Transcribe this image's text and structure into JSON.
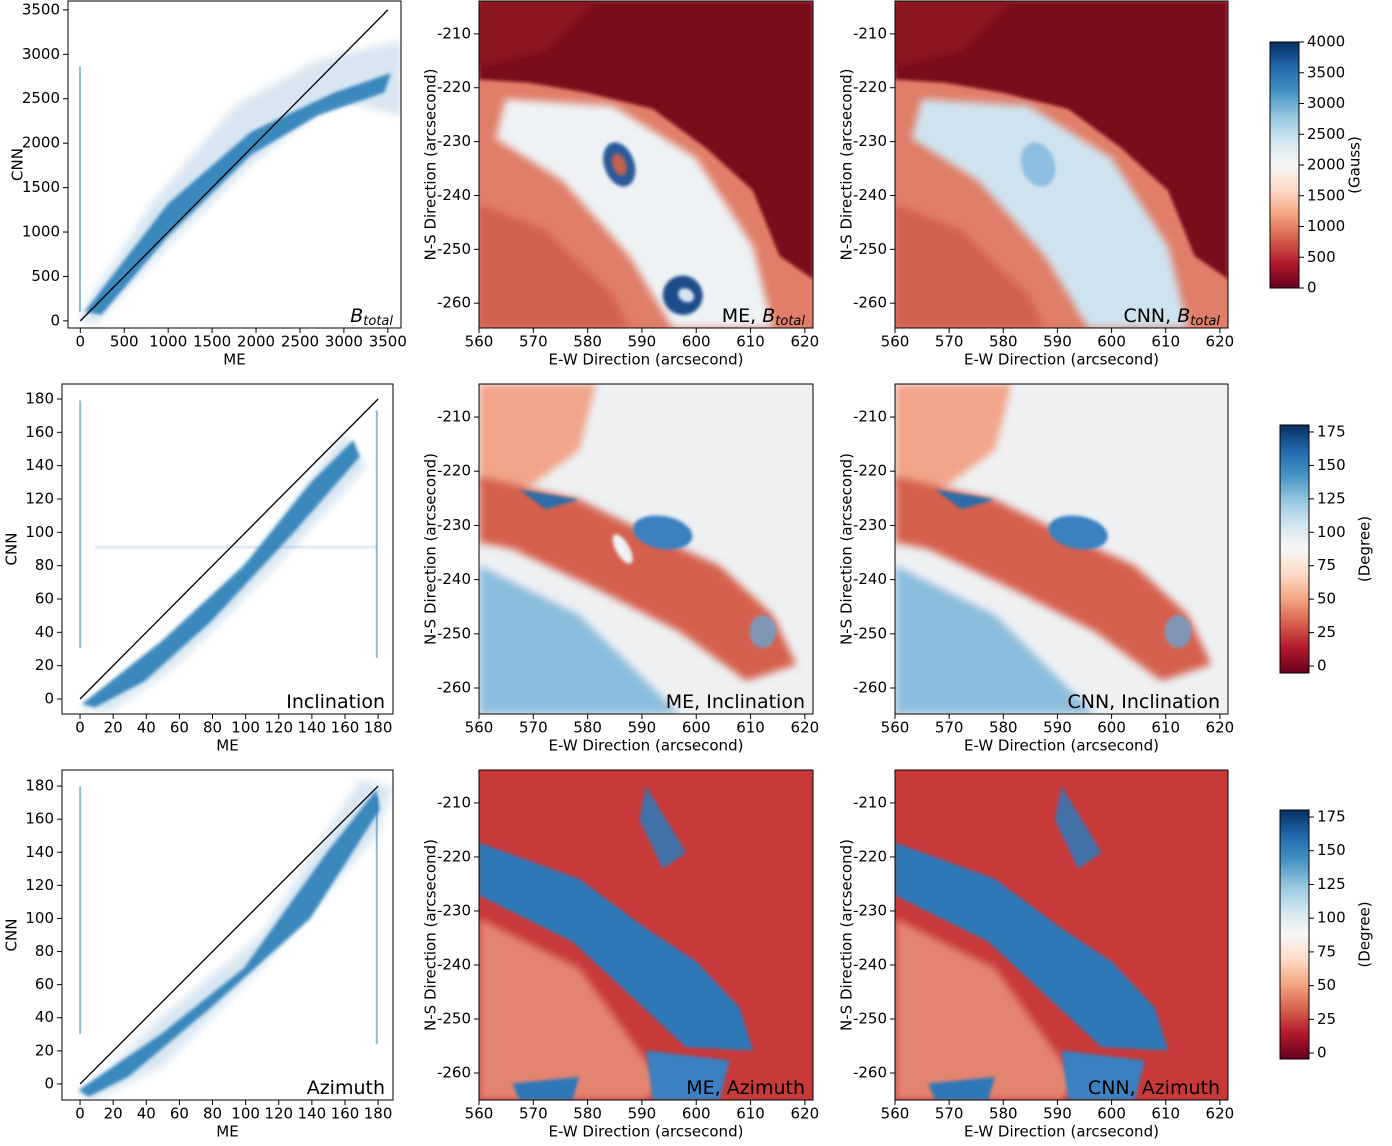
{
  "chart_data": [
    {
      "type": "scatter",
      "xlabel": "ME",
      "ylabel": "CNN",
      "xlim": [
        -140,
        3650
      ],
      "ylim": [
        -80,
        3600
      ],
      "xticks": [
        0,
        500,
        1000,
        1500,
        2000,
        2500,
        3000,
        3500
      ],
      "yticks": [
        0,
        500,
        1000,
        1500,
        2000,
        2500,
        3000,
        3500
      ],
      "annotation": {
        "symbol": "B",
        "subscript": "total"
      },
      "point_color": "#1f77b4",
      "series": [
        {
          "x": [
            0,
            3500
          ],
          "values": [
            0,
            3500
          ],
          "color": "#000000"
        }
      ]
    },
    {
      "type": "heatmap",
      "xlabel": "E-W Direction (arcsecond)",
      "ylabel": "N-S Direction (arcsecond)",
      "xlim": [
        560,
        621.5
      ],
      "ylim": [
        -264.6,
        -203.9
      ],
      "xticks": [
        560,
        570,
        580,
        590,
        600,
        610,
        620
      ],
      "yticks": [
        -260,
        -250,
        -240,
        -230,
        -220,
        -210
      ],
      "annotation": {
        "text": "ME, ",
        "symbol": "B",
        "subscript": "total"
      }
    },
    {
      "type": "heatmap",
      "xlabel": "E-W Direction (arcsecond)",
      "ylabel": "N-S Direction (arcsecond)",
      "xlim": [
        560,
        621.5
      ],
      "ylim": [
        -264.6,
        -203.9
      ],
      "xticks": [
        560,
        570,
        580,
        590,
        600,
        610,
        620
      ],
      "yticks": [
        -260,
        -250,
        -240,
        -230,
        -220,
        -210
      ],
      "annotation": {
        "text": "CNN, ",
        "symbol": "B",
        "subscript": "total"
      }
    },
    {
      "type": "colorbar",
      "label": "(Gauss)",
      "ylim": [
        0,
        4000
      ],
      "yticks": [
        0,
        500,
        1000,
        1500,
        2000,
        2500,
        3000,
        3500,
        4000
      ],
      "colormap": [
        "#67001f",
        "#b2182b",
        "#d6604d",
        "#f4a582",
        "#fddbc7",
        "#f7f7f7",
        "#d1e5f0",
        "#92c5de",
        "#4393c3",
        "#2166ac",
        "#053061"
      ]
    },
    {
      "type": "scatter",
      "xlabel": "ME",
      "ylabel": "CNN",
      "xlim": [
        -10.9,
        189
      ],
      "ylim": [
        -9,
        189
      ],
      "xticks": [
        0,
        20,
        40,
        60,
        80,
        100,
        120,
        140,
        160,
        180
      ],
      "yticks": [
        0,
        20,
        40,
        60,
        80,
        100,
        120,
        140,
        160,
        180
      ],
      "annotation": {
        "text": "Inclination"
      },
      "point_color": "#1f77b4",
      "series": [
        {
          "x": [
            0,
            180
          ],
          "values": [
            0,
            180
          ],
          "color": "#000000"
        }
      ]
    },
    {
      "type": "heatmap",
      "xlabel": "E-W Direction (arcsecond)",
      "ylabel": "N-S Direction (arcsecond)",
      "xlim": [
        560,
        621.5
      ],
      "ylim": [
        -264.8,
        -203.9
      ],
      "xticks": [
        560,
        570,
        580,
        590,
        600,
        610,
        620
      ],
      "yticks": [
        -260,
        -250,
        -240,
        -230,
        -220,
        -210
      ],
      "annotation": {
        "text": "ME, Inclination"
      }
    },
    {
      "type": "heatmap",
      "xlabel": "E-W Direction (arcsecond)",
      "ylabel": "N-S Direction (arcsecond)",
      "xlim": [
        560,
        621.5
      ],
      "ylim": [
        -264.8,
        -203.9
      ],
      "xticks": [
        560,
        570,
        580,
        590,
        600,
        610,
        620
      ],
      "yticks": [
        -260,
        -250,
        -240,
        -230,
        -220,
        -210
      ],
      "annotation": {
        "text": "CNN, Inclination"
      }
    },
    {
      "type": "colorbar",
      "label": "(Degree)",
      "ylim": [
        -5.2,
        180.2
      ],
      "yticks": [
        0,
        25,
        50,
        75,
        100,
        125,
        150,
        175
      ],
      "colormap": [
        "#67001f",
        "#b2182b",
        "#d6604d",
        "#f4a582",
        "#fddbc7",
        "#f7f7f7",
        "#d1e5f0",
        "#92c5de",
        "#4393c3",
        "#2166ac",
        "#053061"
      ]
    },
    {
      "type": "scatter",
      "xlabel": "ME",
      "ylabel": "CNN",
      "xlim": [
        -10.9,
        189
      ],
      "ylim": [
        -9.7,
        189.7
      ],
      "xticks": [
        0,
        20,
        40,
        60,
        80,
        100,
        120,
        140,
        160,
        180
      ],
      "yticks": [
        0,
        20,
        40,
        60,
        80,
        100,
        120,
        140,
        160,
        180
      ],
      "annotation": {
        "text": "Azimuth"
      },
      "point_color": "#1f77b4",
      "series": [
        {
          "x": [
            0,
            180
          ],
          "values": [
            0,
            180
          ],
          "color": "#000000"
        }
      ]
    },
    {
      "type": "heatmap",
      "xlabel": "E-W Direction (arcsecond)",
      "ylabel": "N-S Direction (arcsecond)",
      "xlim": [
        560,
        621.5
      ],
      "ylim": [
        -265,
        -203.9
      ],
      "xticks": [
        560,
        570,
        580,
        590,
        600,
        610,
        620
      ],
      "yticks": [
        -260,
        -250,
        -240,
        -230,
        -220,
        -210
      ],
      "annotation": {
        "text": "ME, Azimuth"
      }
    },
    {
      "type": "heatmap",
      "xlabel": "E-W Direction (arcsecond)",
      "ylabel": "N-S Direction (arcsecond)",
      "xlim": [
        560,
        621.5
      ],
      "ylim": [
        -265,
        -203.9
      ],
      "xticks": [
        560,
        570,
        580,
        590,
        600,
        610,
        620
      ],
      "yticks": [
        -260,
        -250,
        -240,
        -230,
        -220,
        -210
      ],
      "annotation": {
        "text": "CNN, Azimuth"
      }
    },
    {
      "type": "colorbar",
      "label": "(Degree)",
      "ylim": [
        -4.4,
        180.2
      ],
      "yticks": [
        0,
        25,
        50,
        75,
        100,
        125,
        150,
        175
      ],
      "colormap": [
        "#67001f",
        "#b2182b",
        "#d6604d",
        "#f4a582",
        "#fddbc7",
        "#f7f7f7",
        "#d1e5f0",
        "#92c5de",
        "#4393c3",
        "#2166ac",
        "#053061"
      ]
    }
  ]
}
